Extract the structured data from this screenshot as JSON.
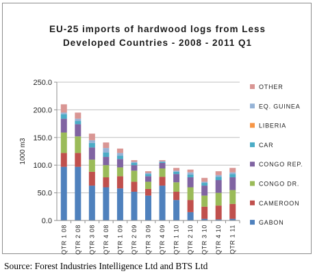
{
  "chart_data": {
    "type": "bar",
    "stacked": true,
    "title_line1": "EU-25 imports of hardwood logs from Less",
    "title_line2": "Developed Countries -  2008 -  2011 Q1",
    "xlabel": "",
    "ylabel": "1000 m3",
    "ylim": [
      0,
      250
    ],
    "yticks": [
      "0.0",
      "50.0",
      "100.0",
      "150.0",
      "200.0",
      "250.0"
    ],
    "categories": [
      "QTR 1 08",
      "QTR 2 08",
      "QTR 3 08",
      "QTR 4 08",
      "QTR 1 09",
      "QTR 2 09",
      "QTR 3 09",
      "QTR 4 09",
      "QTR 1 10",
      "QTR 2 10",
      "QTR 3 10",
      "QTR 4 10",
      "QTR 1 11"
    ],
    "grid": true,
    "legend_position": "right",
    "series": [
      {
        "name": "GABON",
        "color": "#4f81bd",
        "values": [
          97,
          97,
          63,
          60,
          58,
          52,
          45,
          63,
          37,
          15,
          3,
          2,
          3
        ]
      },
      {
        "name": "CAMEROON",
        "color": "#c0504d",
        "values": [
          25,
          25,
          25,
          18,
          22,
          18,
          12,
          16,
          15,
          22,
          22,
          25,
          27
        ]
      },
      {
        "name": "CONGO DR.",
        "color": "#9bbb59",
        "values": [
          37,
          30,
          22,
          22,
          16,
          20,
          13,
          15,
          17,
          23,
          20,
          23,
          25
        ]
      },
      {
        "name": "CONGO REP.",
        "color": "#8064a2",
        "values": [
          25,
          22,
          22,
          15,
          15,
          10,
          10,
          10,
          15,
          18,
          18,
          23,
          23
        ]
      },
      {
        "name": "CAR",
        "color": "#4bacc6",
        "values": [
          8,
          6,
          8,
          8,
          6,
          4,
          4,
          2,
          4,
          5,
          5,
          6,
          6
        ]
      },
      {
        "name": "LIBERIA",
        "color": "#f79646",
        "values": [
          0,
          0,
          0,
          0,
          0,
          0,
          0,
          0,
          0,
          0,
          0,
          0,
          0
        ]
      },
      {
        "name": "EQ. GUINEA",
        "color": "#95b3d7",
        "values": [
          3,
          4,
          5,
          8,
          5,
          2,
          2,
          1,
          2,
          4,
          2,
          3,
          3
        ]
      },
      {
        "name": "OTHER",
        "color": "#d99694",
        "values": [
          15,
          11,
          12,
          10,
          8,
          3,
          3,
          2,
          5,
          5,
          7,
          7,
          8
        ]
      }
    ]
  },
  "legend_order": [
    "OTHER",
    "EQ. GUINEA",
    "LIBERIA",
    "CAR",
    "CONGO REP.",
    "CONGO DR.",
    "CAMEROON",
    "GABON"
  ],
  "source": "Source: Forest Industries Intelligence Ltd and BTS Ltd"
}
